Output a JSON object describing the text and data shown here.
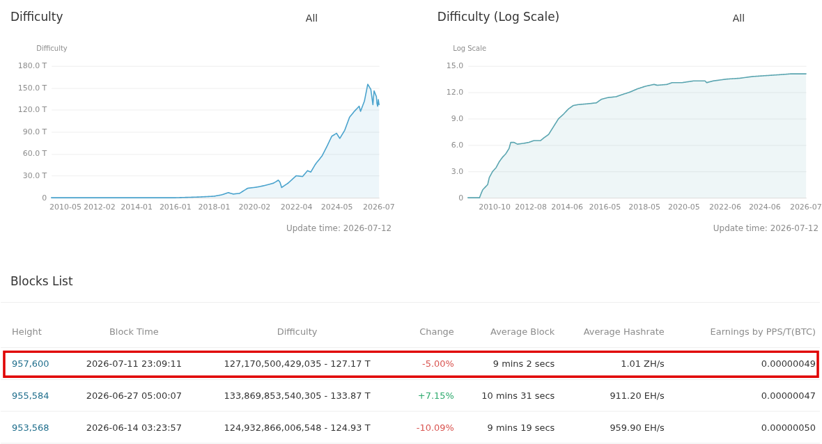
{
  "chart_data": [
    {
      "type": "area",
      "title": "Difficulty",
      "ylabel": "Difficulty",
      "annotations": [
        "All",
        "Update time: 2026-07-12"
      ],
      "xlim": [
        "2009-08-15",
        "2026-07-11"
      ],
      "xticks": [
        "2010-05",
        "2012-02",
        "2014-01",
        "2016-01",
        "2018-01",
        "2020-02",
        "2022-04",
        "2024-05",
        "2026-07"
      ],
      "ylim": [
        0,
        180
      ],
      "yticks": [
        0,
        {
          "value": 30,
          "label": "30.0 T"
        },
        {
          "value": 60,
          "label": "60.0 T"
        },
        {
          "value": 90,
          "label": "90.0 T"
        },
        {
          "value": 120,
          "label": "120.0 T"
        },
        {
          "value": 150,
          "label": "150.0 T"
        },
        {
          "value": 180,
          "label": "180.0 T"
        }
      ],
      "grid": "y",
      "series": [
        {
          "color": "#4aa3cd",
          "x": [
            "2009-08-15",
            "2012-01",
            "2014-01",
            "2016-01",
            "2017-04",
            "2018-01",
            "2018-06",
            "2018-10",
            "2019-01",
            "2019-05",
            "2019-10",
            "2020-02",
            "2020-05",
            "2020-09",
            "2021-02",
            "2021-05",
            "2021-06",
            "2021-07",
            "2021-11",
            "2022-04",
            "2022-08",
            "2022-11",
            "2023-01",
            "2023-04",
            "2023-08",
            "2023-11",
            "2024-02",
            "2024-05",
            "2024-07",
            "2024-10",
            "2025-01",
            "2025-04",
            "2025-07-01",
            "2025-07-27",
            "2025-10-08",
            "2025-12-10",
            "2026-02-06",
            "2026-03-17",
            "2026-04-08",
            "2026-05-22",
            "2026-06-01",
            "2026-06-14",
            "2026-06-27",
            "2026-07-11"
          ],
          "values": [
            0,
            0,
            0,
            0,
            1,
            2,
            4,
            7,
            5,
            6,
            13,
            14,
            15,
            17,
            20,
            24,
            21,
            14,
            20,
            30,
            29,
            37,
            35,
            46,
            57,
            70,
            84,
            88,
            81,
            92,
            110,
            118,
            125,
            118,
            132,
            155,
            148,
            127,
            146,
            138,
            129,
            125,
            134,
            127
          ]
        }
      ]
    },
    {
      "type": "area",
      "title": "Difficulty (Log Scale)",
      "ylabel": "Log Scale",
      "annotations": [
        "All",
        "Update time: 2026-07-12"
      ],
      "xlim": [
        "2009-06-01",
        "2026-07-11"
      ],
      "xticks": [
        "2010-10",
        "2012-08",
        "2014-06",
        "2016-05",
        "2018-05",
        "2020-05",
        "2022-06",
        "2024-06",
        "2026-07"
      ],
      "ylim": [
        0,
        15
      ],
      "yticks": [
        0,
        {
          "value": 3,
          "label": "3.0"
        },
        {
          "value": 6,
          "label": "6.0"
        },
        {
          "value": 9,
          "label": "9.0"
        },
        {
          "value": 12,
          "label": "12.0"
        },
        {
          "value": 15,
          "label": "15.0"
        }
      ],
      "grid": "y",
      "series": [
        {
          "color": "#5aa5b0",
          "x": [
            "2009-06-01",
            "2010-01",
            "2010-02",
            "2010-03",
            "2010-05",
            "2010-06",
            "2010-07",
            "2010-09",
            "2010-11",
            "2011-01",
            "2011-03",
            "2011-05",
            "2011-07",
            "2011-08",
            "2011-10",
            "2011-11",
            "2011-12",
            "2012-04",
            "2012-07",
            "2012-10",
            "2013-02",
            "2013-04",
            "2013-07",
            "2013-10",
            "2014-01",
            "2014-04",
            "2014-07",
            "2014-10",
            "2015-01",
            "2015-07",
            "2015-12",
            "2016-03",
            "2016-07",
            "2016-12",
            "2017-03",
            "2017-08",
            "2018-01",
            "2018-06",
            "2018-11",
            "2019-01",
            "2019-07",
            "2019-10",
            "2020-04",
            "2020-11",
            "2021-06",
            "2021-07",
            "2021-11",
            "2022-07",
            "2023-03",
            "2023-11",
            "2024-07",
            "2025-03",
            "2025-10",
            "2026-03",
            "2026-07-11"
          ],
          "values": [
            0,
            0,
            0.5,
            0.9,
            1.3,
            1.5,
            2.3,
            3.0,
            3.4,
            4.1,
            4.6,
            5.0,
            5.6,
            6.3,
            6.3,
            6.2,
            6.1,
            6.2,
            6.3,
            6.5,
            6.5,
            6.8,
            7.2,
            8.1,
            9.0,
            9.5,
            10.1,
            10.5,
            10.6,
            10.7,
            10.8,
            11.2,
            11.4,
            11.5,
            11.7,
            12.0,
            12.4,
            12.7,
            12.9,
            12.8,
            12.9,
            13.1,
            13.1,
            13.3,
            13.3,
            13.1,
            13.3,
            13.5,
            13.6,
            13.8,
            13.9,
            14.0,
            14.1,
            14.1,
            14.1
          ]
        }
      ]
    },
    {
      "type": "other",
      "title": "Blocks List",
      "categories": [
        "Height",
        "Block Time",
        "Difficulty",
        "Change",
        "Average Block",
        "Average Hashrate",
        "Earnings by PPS/T(BTC)"
      ],
      "cell_labels": [
        [
          "957,600",
          "2026-07-11 23:09:11",
          "127,170,500,429,035 - 127.17 T",
          "-5.00%",
          "9 mins 2 secs",
          "1.01 ZH/s",
          "0.00000049"
        ],
        [
          "955,584",
          "2026-06-27 05:00:07",
          "133,869,853,540,305 - 133.87 T",
          "+7.15%",
          "10 mins 31 secs",
          "911.20 EH/s",
          "0.00000047"
        ],
        [
          "953,568",
          "2026-06-14 03:23:57",
          "124,932,866,006,548 - 124.93 T",
          "-10.09%",
          "9 mins 19 secs",
          "959.90 EH/s",
          "0.00000050"
        ]
      ],
      "colors": [
        [
          "#1f6e8c",
          "#333333",
          "#333333",
          "#d9534f",
          "#333333",
          "#333333",
          "#333333"
        ],
        [
          "#1f6e8c",
          "#333333",
          "#333333",
          "#2eaa6e",
          "#333333",
          "#333333",
          "#333333"
        ],
        [
          "#1f6e8c",
          "#333333",
          "#333333",
          "#d9534f",
          "#333333",
          "#333333",
          "#333333"
        ]
      ]
    }
  ]
}
